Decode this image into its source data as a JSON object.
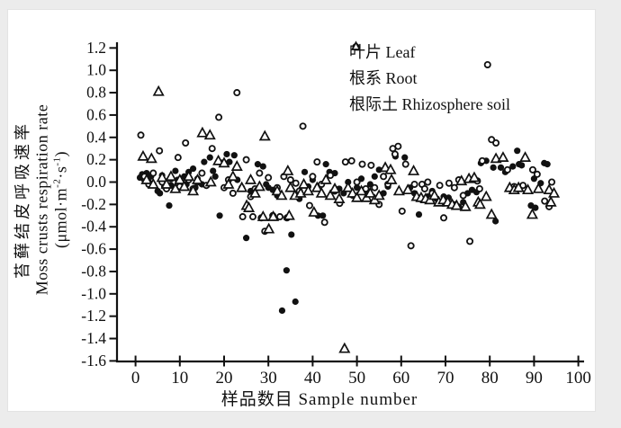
{
  "page": {
    "colors": {
      "ink": "#111111",
      "panel_background": "#ffffff",
      "page_background": "#ececec"
    }
  },
  "chart_data": {
    "type": "scatter",
    "title": "",
    "xlabel": "样品数目 Sample number",
    "ylabel_zh": "苔藓结皮呼吸速率",
    "ylabel_en": "Moss crusts respiration rate",
    "ylabel_unit": {
      "pre": "(μmol·m",
      "sup1": "-2",
      "mid": "·s",
      "sup2": "-1",
      "post": ")"
    },
    "xlim": [
      0,
      100
    ],
    "ylim": [
      -1.6,
      1.2
    ],
    "x_ticks": [
      0,
      10,
      20,
      30,
      40,
      50,
      60,
      70,
      80,
      90,
      100
    ],
    "y_tick_labels": [
      "1.2",
      "1.0",
      "0.8",
      "0.6",
      "0.4",
      "0.2",
      "0.0",
      "-0.2",
      "-0.4",
      "-0.6",
      "-0.8",
      "-1.0",
      "-1.2",
      "-1.4",
      "-1.6"
    ],
    "grid": false,
    "legend_position": "top-inside",
    "series": [
      {
        "name": "叶片 Leaf",
        "marker": "filled-circle",
        "points": [
          [
            1,
            0.04
          ],
          [
            1.5,
            0.07
          ],
          [
            2,
            0.02
          ],
          [
            2.5,
            0.08
          ],
          [
            3,
            0
          ],
          [
            3.5,
            0.05
          ],
          [
            4,
            -0.02
          ],
          [
            5,
            -0.08
          ],
          [
            5.5,
            -0.1
          ],
          [
            6,
            0.06
          ],
          [
            6.5,
            -0.04
          ],
          [
            7,
            -0.05
          ],
          [
            7.6,
            -0.21
          ],
          [
            8,
            -0.03
          ],
          [
            9,
            0.1
          ],
          [
            9.5,
            0.02
          ],
          [
            10,
            -0.03
          ],
          [
            11,
            0.05
          ],
          [
            11.5,
            -0.02
          ],
          [
            12,
            0.09
          ],
          [
            13,
            0.12
          ],
          [
            13.5,
            -0.05
          ],
          [
            14,
            0.03
          ],
          [
            15,
            -0.02
          ],
          [
            15.5,
            0.18
          ],
          [
            16.8,
            0.22
          ],
          [
            17.5,
            0.1
          ],
          [
            18,
            0.05
          ],
          [
            19,
            -0.3
          ],
          [
            20.6,
            0.25
          ],
          [
            21.2,
            0.18
          ],
          [
            22.3,
            0.24
          ],
          [
            23,
            0.02
          ],
          [
            24,
            -0.05
          ],
          [
            25,
            -0.5
          ],
          [
            26,
            -0.08
          ],
          [
            27.6,
            0.16
          ],
          [
            28.8,
            0.14
          ],
          [
            29.5,
            -0.02
          ],
          [
            30,
            -0.05
          ],
          [
            31,
            -0.07
          ],
          [
            32,
            -0.12
          ],
          [
            33.1,
            -1.15
          ],
          [
            34.1,
            -0.79
          ],
          [
            35.2,
            -0.47
          ],
          [
            36.1,
            -1.07
          ],
          [
            37,
            -0.15
          ],
          [
            38.2,
            0.09
          ],
          [
            39,
            -0.04
          ],
          [
            40,
            0.02
          ],
          [
            41.2,
            -0.3
          ],
          [
            42.3,
            -0.3
          ],
          [
            43,
            0.16
          ],
          [
            43.8,
            0.09
          ],
          [
            45,
            0.08
          ],
          [
            46,
            -0.06
          ],
          [
            47,
            -0.1
          ],
          [
            48,
            0
          ],
          [
            49,
            -0.12
          ],
          [
            50,
            -0.05
          ],
          [
            51,
            0.03
          ],
          [
            52,
            -0.08
          ],
          [
            53,
            -0.02
          ],
          [
            54,
            0.05
          ],
          [
            55,
            0.11
          ],
          [
            56,
            -0.1
          ],
          [
            57,
            -0.04
          ],
          [
            58.7,
            0.23
          ],
          [
            60.8,
            0.22
          ],
          [
            62,
            -0.05
          ],
          [
            63,
            -0.1
          ],
          [
            64,
            -0.29
          ],
          [
            65,
            -0.16
          ],
          [
            66,
            -0.13
          ],
          [
            67,
            -0.08
          ],
          [
            68,
            -0.15
          ],
          [
            69.6,
            -0.13
          ],
          [
            70.7,
            -0.14
          ],
          [
            72,
            -0.2
          ],
          [
            73,
            -0.22
          ],
          [
            74,
            -0.18
          ],
          [
            75,
            -0.1
          ],
          [
            76,
            -0.07
          ],
          [
            77,
            -0.09
          ],
          [
            78,
            0.17
          ],
          [
            79.2,
            0.19
          ],
          [
            80.8,
            0.13
          ],
          [
            81.3,
            -0.35
          ],
          [
            82.5,
            0.13
          ],
          [
            83.5,
            0.09
          ],
          [
            85.2,
            0.14
          ],
          [
            86.2,
            0.28
          ],
          [
            86.6,
            0.16
          ],
          [
            87.2,
            0.15
          ],
          [
            89.3,
            -0.21
          ],
          [
            90,
            0.03
          ],
          [
            90.3,
            -0.23
          ],
          [
            91.5,
            -0.01
          ],
          [
            92.3,
            0.17
          ],
          [
            93,
            0.16
          ]
        ]
      },
      {
        "name": "根系 Root",
        "marker": "open-circle",
        "points": [
          [
            1.2,
            0.42
          ],
          [
            2,
            0.05
          ],
          [
            3,
            -0.02
          ],
          [
            4,
            0.08
          ],
          [
            5.4,
            0.28
          ],
          [
            6,
            0
          ],
          [
            7,
            -0.06
          ],
          [
            8,
            0.03
          ],
          [
            9.6,
            0.22
          ],
          [
            10,
            -0.04
          ],
          [
            11.3,
            0.35
          ],
          [
            12,
            0.02
          ],
          [
            13,
            -0.06
          ],
          [
            14,
            0
          ],
          [
            15,
            0.08
          ],
          [
            16,
            -0.03
          ],
          [
            17.3,
            0.3
          ],
          [
            18.8,
            0.58
          ],
          [
            19.5,
            0.17
          ],
          [
            20,
            -0.05
          ],
          [
            21,
            0.02
          ],
          [
            22,
            -0.1
          ],
          [
            22.9,
            0.8
          ],
          [
            24.2,
            -0.31
          ],
          [
            25,
            0.2
          ],
          [
            26,
            -0.13
          ],
          [
            26.5,
            -0.31
          ],
          [
            27,
            -0.06
          ],
          [
            28,
            0.08
          ],
          [
            28.4,
            -0.32
          ],
          [
            29.2,
            -0.44
          ],
          [
            30,
            0.04
          ],
          [
            31,
            -0.3
          ],
          [
            32,
            -0.05
          ],
          [
            32.6,
            -0.31
          ],
          [
            33.5,
            0.05
          ],
          [
            34.2,
            -0.32
          ],
          [
            35,
            0.02
          ],
          [
            36.2,
            -0.01
          ],
          [
            37,
            -0.08
          ],
          [
            37.8,
            0.5
          ],
          [
            39.3,
            -0.21
          ],
          [
            40,
            0.05
          ],
          [
            41,
            0.18
          ],
          [
            42,
            -0.02
          ],
          [
            42.7,
            -0.36
          ],
          [
            44,
            0.06
          ],
          [
            45,
            -0.08
          ],
          [
            46.1,
            -0.19
          ],
          [
            47.4,
            0.18
          ],
          [
            48.8,
            0.19
          ],
          [
            50,
            0
          ],
          [
            51.2,
            0.16
          ],
          [
            52,
            -0.06
          ],
          [
            53.2,
            0.15
          ],
          [
            54,
            -0.05
          ],
          [
            55,
            -0.2
          ],
          [
            56,
            0.05
          ],
          [
            57,
            -0.02
          ],
          [
            58.1,
            0.3
          ],
          [
            58.6,
            0.25
          ],
          [
            59.3,
            0.32
          ],
          [
            60.2,
            -0.26
          ],
          [
            61,
            0.16
          ],
          [
            62.2,
            -0.57
          ],
          [
            63,
            -0.02
          ],
          [
            64.7,
            -0.02
          ],
          [
            65.3,
            -0.06
          ],
          [
            66,
            0
          ],
          [
            67,
            -0.1
          ],
          [
            68.7,
            -0.03
          ],
          [
            69.6,
            -0.32
          ],
          [
            70.8,
            -0.01
          ],
          [
            72,
            -0.05
          ],
          [
            73,
            0.02
          ],
          [
            74,
            -0.12
          ],
          [
            75.5,
            -0.53
          ],
          [
            77.2,
            0.01
          ],
          [
            77.7,
            -0.06
          ],
          [
            78.3,
            0.19
          ],
          [
            79.5,
            1.05
          ],
          [
            80.4,
            0.38
          ],
          [
            81.4,
            0.35
          ],
          [
            84,
            0.11
          ],
          [
            85.5,
            -0.04
          ],
          [
            87.5,
            -0.03
          ],
          [
            89.7,
            0.11
          ],
          [
            90.7,
            0.07
          ],
          [
            92.4,
            -0.17
          ],
          [
            93.4,
            -0.22
          ],
          [
            94,
            0
          ]
        ]
      },
      {
        "name": "根际土 Rhizosphere soil",
        "marker": "open-triangle",
        "points": [
          [
            1.7,
            0.23
          ],
          [
            2.5,
            0.02
          ],
          [
            3.6,
            0.21
          ],
          [
            4,
            -0.02
          ],
          [
            5.2,
            0.81
          ],
          [
            6,
            0.04
          ],
          [
            7,
            -0.02
          ],
          [
            8,
            0.05
          ],
          [
            9,
            -0.06
          ],
          [
            10,
            0.02
          ],
          [
            11,
            -0.04
          ],
          [
            12,
            0.05
          ],
          [
            13,
            -0.08
          ],
          [
            14,
            0.02
          ],
          [
            15.1,
            0.44
          ],
          [
            16.8,
            0.42
          ],
          [
            17,
            0
          ],
          [
            18.7,
            0.19
          ],
          [
            20,
            0.17
          ],
          [
            21,
            -0.02
          ],
          [
            22,
            0.05
          ],
          [
            22.9,
            0.14
          ],
          [
            24,
            -0.05
          ],
          [
            25.1,
            -0.21
          ],
          [
            25.6,
            -0.23
          ],
          [
            26,
            0.02
          ],
          [
            27,
            -0.1
          ],
          [
            28,
            -0.04
          ],
          [
            28.8,
            -0.31
          ],
          [
            29.2,
            0.41
          ],
          [
            30.1,
            -0.42
          ],
          [
            31.1,
            -0.31
          ],
          [
            32,
            -0.08
          ],
          [
            33,
            -0.12
          ],
          [
            34.4,
            0.1
          ],
          [
            34.7,
            -0.3
          ],
          [
            35,
            -0.05
          ],
          [
            36,
            -0.12
          ],
          [
            37.3,
            -0.1
          ],
          [
            38,
            -0.02
          ],
          [
            39,
            -0.08
          ],
          [
            40.3,
            -0.27
          ],
          [
            41,
            -0.05
          ],
          [
            42,
            -0.1
          ],
          [
            43,
            0.02
          ],
          [
            44,
            -0.12
          ],
          [
            45,
            -0.06
          ],
          [
            46,
            -0.15
          ],
          [
            47.2,
            -1.49
          ],
          [
            48,
            -0.05
          ],
          [
            49,
            -0.1
          ],
          [
            50,
            -0.14
          ],
          [
            51,
            -0.08
          ],
          [
            52.2,
            -0.14
          ],
          [
            53,
            -0.1
          ],
          [
            54,
            -0.16
          ],
          [
            55,
            -0.12
          ],
          [
            56.4,
            0.13
          ],
          [
            57.6,
            0.11
          ],
          [
            57.8,
            0.02
          ],
          [
            59.5,
            -0.08
          ],
          [
            61.5,
            -0.07
          ],
          [
            62.8,
            0.1
          ],
          [
            63.5,
            -0.13
          ],
          [
            64.5,
            -0.14
          ],
          [
            65.5,
            -0.15
          ],
          [
            66.5,
            -0.16
          ],
          [
            67.5,
            -0.12
          ],
          [
            68.5,
            -0.18
          ],
          [
            69.5,
            -0.16
          ],
          [
            70.5,
            -0.18
          ],
          [
            71.5,
            -0.2
          ],
          [
            72.5,
            -0.21
          ],
          [
            73.6,
            0.01
          ],
          [
            74.5,
            -0.22
          ],
          [
            75.3,
            0.03
          ],
          [
            76.5,
            0.04
          ],
          [
            77.4,
            -0.18
          ],
          [
            77.8,
            -0.2
          ],
          [
            79.2,
            -0.13
          ],
          [
            80.4,
            -0.29
          ],
          [
            81.4,
            0.21
          ],
          [
            83,
            0.22
          ],
          [
            84.5,
            -0.05
          ],
          [
            85.5,
            -0.07
          ],
          [
            86.5,
            -0.05
          ],
          [
            88,
            0.22
          ],
          [
            88.6,
            -0.07
          ],
          [
            89.6,
            -0.29
          ],
          [
            91,
            -0.06
          ],
          [
            93.4,
            -0.07
          ],
          [
            93.8,
            -0.18
          ],
          [
            94.5,
            -0.1
          ]
        ]
      }
    ]
  }
}
